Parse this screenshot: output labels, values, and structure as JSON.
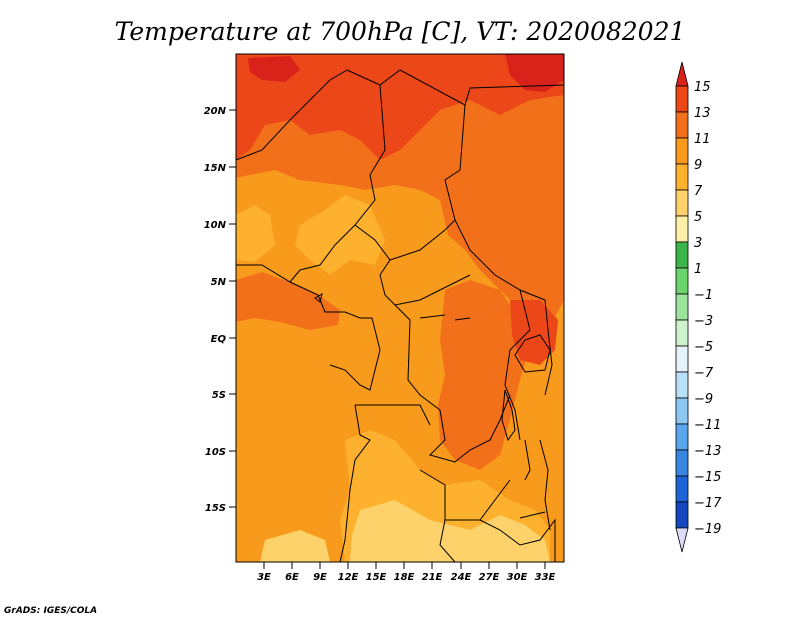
{
  "title": "Temperature at 700hPa [C], VT: 2020082021",
  "credit": "GrADS: IGES/COLA",
  "map": {
    "lat_labels": [
      "20N",
      "15N",
      "10N",
      "5N",
      "EQ",
      "5S",
      "10S",
      "15S"
    ],
    "lon_labels": [
      "3E",
      "6E",
      "9E",
      "12E",
      "15E",
      "18E",
      "21E",
      "24E",
      "27E",
      "30E",
      "33E"
    ],
    "colors": {
      "c7_9": "#fdb12e",
      "c9_11": "#f89a1b",
      "c11_13": "#f3701a",
      "c13_15": "#eb4719",
      "c15_up": "#d9231a",
      "c5_7": "#fdd26b",
      "border": "#000000"
    }
  },
  "colorbar": {
    "labels": [
      "15",
      "13",
      "11",
      "9",
      "7",
      "5",
      "3",
      "1",
      "−1",
      "−3",
      "−5",
      "−7",
      "−9",
      "−11",
      "−13",
      "−15",
      "−17",
      "−19"
    ],
    "colors": [
      "#d9231a",
      "#eb4719",
      "#f3701a",
      "#f89a1b",
      "#fdb12e",
      "#fdd26b",
      "#fdf0a8",
      "#3cb54a",
      "#6bd46b",
      "#9be49b",
      "#cdf3cd",
      "#e6f3fb",
      "#b8e0f7",
      "#8ec6f2",
      "#5aa6ec",
      "#3a87e3",
      "#1e63d6",
      "#1446bc",
      "#0c2b9a",
      "#0a156b",
      "#dcdcf7"
    ]
  }
}
